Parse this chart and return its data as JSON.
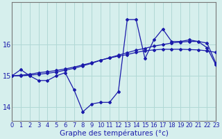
{
  "hours": [
    0,
    1,
    2,
    3,
    4,
    5,
    6,
    7,
    8,
    9,
    10,
    11,
    12,
    13,
    14,
    15,
    16,
    17,
    18,
    19,
    20,
    21,
    22,
    23
  ],
  "line_zigzag": [
    15.0,
    15.2,
    15.0,
    14.85,
    14.85,
    15.0,
    15.1,
    14.55,
    13.85,
    14.1,
    14.15,
    14.15,
    14.5,
    16.8,
    16.8,
    15.55,
    16.15,
    16.5,
    16.1,
    16.1,
    16.15,
    16.1,
    15.9,
    15.35
  ],
  "line_smooth": [
    15.0,
    15.02,
    15.05,
    15.1,
    15.13,
    15.17,
    15.22,
    15.28,
    15.35,
    15.42,
    15.5,
    15.57,
    15.63,
    15.68,
    15.75,
    15.8,
    15.83,
    15.85,
    15.85,
    15.85,
    15.84,
    15.83,
    15.8,
    15.75
  ],
  "line_curve": [
    15.0,
    15.0,
    15.02,
    15.05,
    15.08,
    15.12,
    15.18,
    15.24,
    15.32,
    15.4,
    15.5,
    15.58,
    15.66,
    15.74,
    15.82,
    15.88,
    15.95,
    16.0,
    16.05,
    16.08,
    16.1,
    16.1,
    16.05,
    15.4
  ],
  "bg_color": "#d6efed",
  "grid_color": "#b0d8d5",
  "line_color": "#1a1aaa",
  "ylabel_ticks": [
    14,
    15,
    16
  ],
  "xlabel": "Graphe des températures (°c)",
  "xlim": [
    0,
    23
  ],
  "ylim": [
    13.55,
    17.35
  ],
  "tick_fontsize": 6,
  "label_fontsize": 7.5
}
